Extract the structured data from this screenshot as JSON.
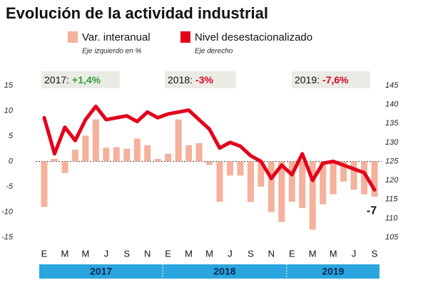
{
  "chart_data": {
    "type": "bar-line",
    "title": "Evolución de la actividad industrial",
    "categories": [
      "E",
      null,
      "M",
      null,
      "M",
      null,
      "J",
      null,
      "S",
      null,
      "N",
      null,
      "E",
      null,
      "M",
      null,
      "M",
      null,
      "J",
      null,
      "S",
      null,
      "N",
      null,
      "E",
      null,
      "M",
      null,
      "M",
      null,
      "J",
      null,
      "S"
    ],
    "years": [
      "2017",
      "2018",
      "2019"
    ],
    "year_notes": [
      {
        "label": "2017:",
        "text": "+1,4%",
        "color": "#2e9e3e"
      },
      {
        "label": "2018:",
        "text": "-3%",
        "color": "#e3001b"
      },
      {
        "label": "2019:",
        "text": "-7,6%",
        "color": "#e3001b"
      }
    ],
    "series": [
      {
        "name": "Var. interanual",
        "axis_note": "Eje izquierdo en %",
        "color": "#f4b19c",
        "type": "bar",
        "values": [
          -9,
          0.5,
          -2.3,
          2.3,
          5.1,
          8.3,
          2.7,
          2.8,
          2.5,
          4.5,
          3.2,
          0.5,
          1.5,
          8.3,
          3.2,
          3.6,
          -0.7,
          -8,
          -2.8,
          -2.8,
          -8,
          -5,
          -10,
          -12,
          -8,
          -9.2,
          -13.5,
          -8.5,
          -6.5,
          -4,
          -5.6,
          -6.5,
          -7
        ],
        "value_labels": [
          null,
          null,
          null,
          null,
          null,
          null,
          null,
          null,
          null,
          null,
          null,
          null,
          null,
          null,
          null,
          null,
          null,
          null,
          null,
          null,
          null,
          null,
          null,
          null,
          null,
          null,
          null,
          null,
          null,
          null,
          null,
          null,
          "-7"
        ]
      },
      {
        "name": "Nivel desestacionalizado",
        "axis_note": "Eje derecho",
        "color": "#e3001b",
        "type": "line",
        "axis": "y2",
        "values": [
          136.5,
          127,
          134,
          130.5,
          136,
          139.5,
          136,
          136.5,
          137,
          135.5,
          138,
          136.5,
          137.5,
          138,
          138.5,
          136,
          133.5,
          128.5,
          130,
          129,
          126.5,
          125,
          120.5,
          124,
          121.5,
          127,
          120,
          124.5,
          125,
          124,
          123,
          122,
          117.5
        ]
      }
    ],
    "ylim": [
      -15,
      15
    ],
    "yticks": [
      15,
      10,
      5,
      0,
      -5,
      -10,
      -15
    ],
    "y2lim": [
      105,
      145
    ],
    "y2ticks": [
      145,
      140,
      135,
      130,
      125,
      120,
      115,
      110,
      105
    ]
  }
}
